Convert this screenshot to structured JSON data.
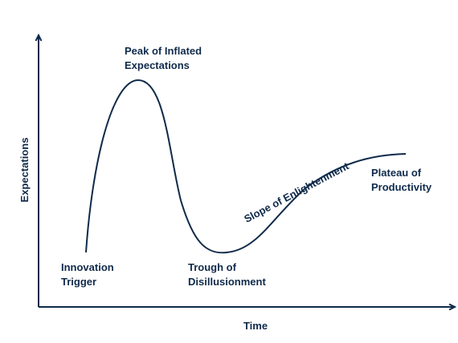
{
  "axes": {
    "y_label": "Expectations",
    "x_label": "Time"
  },
  "phases": [
    {
      "lines": [
        "Innovation",
        "Trigger"
      ]
    },
    {
      "lines": [
        "Peak of Inflated",
        "Expectations"
      ]
    },
    {
      "lines": [
        "Trough of",
        "Disillusionment"
      ]
    },
    {
      "lines": [
        "Slope of Enlightenment"
      ]
    },
    {
      "lines": [
        "Plateau of",
        "Productivity"
      ]
    }
  ]
}
